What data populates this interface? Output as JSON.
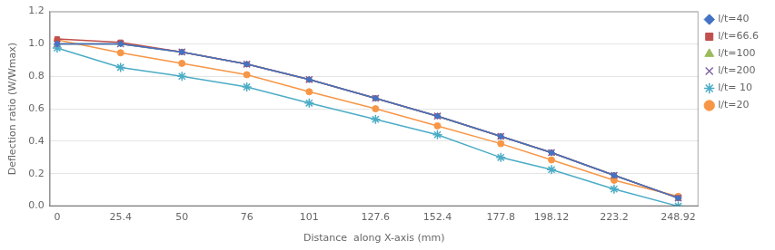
{
  "chart_data": {
    "type": "line",
    "xlabel": "Distance  along X-axis (mm)",
    "ylabel": "Deflection ratio (W/Wmax)",
    "x": [
      0,
      25.4,
      50,
      76,
      101,
      127.6,
      152.4,
      177.8,
      198.12,
      223.2,
      248.92
    ],
    "series": [
      {
        "name": "l/t=40",
        "color": "#4472C4",
        "marker": "diamond",
        "line_style": "solid",
        "values": [
          1.0,
          1.0,
          0.95,
          0.875,
          0.78,
          0.665,
          0.555,
          0.43,
          0.33,
          0.19,
          0.05
        ]
      },
      {
        "name": "l/t=66.6",
        "color": "#C0504D",
        "marker": "square",
        "line_style": "solid",
        "values": [
          1.03,
          1.01,
          0.95,
          0.875,
          0.78,
          0.665,
          0.555,
          0.43,
          0.33,
          0.19,
          0.05
        ]
      },
      {
        "name": "l/t=100",
        "color": "#9BBB59",
        "marker": "triangle",
        "line_style": "solid",
        "values": [
          1.0,
          1.0,
          0.95,
          0.875,
          0.78,
          0.665,
          0.555,
          0.43,
          0.33,
          0.19,
          0.05
        ]
      },
      {
        "name": "l/t=200",
        "color": "#8064A2",
        "marker": "x",
        "line_style": "solid",
        "values": [
          1.0,
          1.0,
          0.95,
          0.875,
          0.78,
          0.665,
          0.555,
          0.43,
          0.33,
          0.19,
          0.05
        ]
      },
      {
        "name": "l/t= 10",
        "color": "#4BACC6",
        "marker": "star",
        "line_style": "solid",
        "values": [
          0.975,
          0.855,
          0.8,
          0.735,
          0.635,
          0.535,
          0.44,
          0.3,
          0.225,
          0.105,
          0.0
        ]
      },
      {
        "name": "l/t=20",
        "color": "#F79646",
        "marker": "circle",
        "line_style": "solid",
        "values": [
          1.025,
          0.945,
          0.88,
          0.81,
          0.705,
          0.6,
          0.495,
          0.385,
          0.285,
          0.16,
          0.06
        ]
      }
    ],
    "xlim": [
      -3,
      257
    ],
    "xticks": [
      0,
      25.4,
      50,
      76,
      101,
      127.6,
      152.4,
      177.8,
      198.12,
      223.2,
      248.92
    ],
    "ylim": [
      0,
      1.2
    ],
    "yticks": [
      {
        "value": 0,
        "label": "0.0"
      },
      0.2,
      0.4,
      0.6,
      0.8,
      {
        "value": 1.0,
        "label": "1.0"
      },
      1.2
    ],
    "grid": "y",
    "legend": "upper right"
  }
}
